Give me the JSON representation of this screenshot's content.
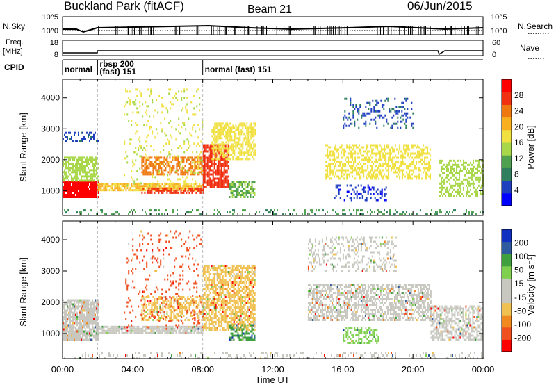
{
  "header": {
    "station": "Buckland Park (fitACF)",
    "beam": "Beam 21",
    "date": "06/Jun/2015"
  },
  "strips": {
    "nsky_label": "N.Sky",
    "nsearch_label": "N.Search",
    "freq_label_line1": "Freq.",
    "freq_label_line2": "[MHz]",
    "nave_label": "Nave",
    "cpid_label": "CPID",
    "nsky_ticks": [
      "10^5",
      "10^0"
    ],
    "nsearch_ticks": [
      "10^5",
      "10^0"
    ],
    "freq_ticks": [
      "18",
      "8"
    ],
    "nave_ticks": [
      "60",
      "0"
    ]
  },
  "cpid_segments": [
    {
      "label": "normal",
      "label2": "",
      "start_h": 0.0,
      "end_h": 2.0
    },
    {
      "label": "rbsp 200",
      "label2": "(fast) 151",
      "start_h": 2.0,
      "end_h": 8.0
    },
    {
      "label": "normal (fast)  151",
      "label2": "",
      "start_h": 8.0,
      "end_h": 24.0
    }
  ],
  "chart_data": [
    {
      "type": "heatmap",
      "panel": "power",
      "ylabel": "Slant Range [km]",
      "xlabel": "Time UT",
      "colorbar_label": "Power [dB]",
      "x_ticks": [
        "00:00",
        "04:00",
        "08:00",
        "12:00",
        "16:00",
        "20:00",
        "00:00"
      ],
      "y_ticks": [
        "1000",
        "2000",
        "3000",
        "4000"
      ],
      "xlim_hours": [
        0,
        24
      ],
      "ylim_km": [
        200,
        4600
      ],
      "colorbar_ticks": [
        "28",
        "24",
        "20",
        "16",
        "12",
        "8",
        "4"
      ],
      "colorbar_range": [
        0,
        32
      ],
      "colors": [
        "#0000ff",
        "#1f3fbf",
        "#2f7f5f",
        "#4fa04f",
        "#a8d84a",
        "#f0e040",
        "#f8b020",
        "#f07810",
        "#f03010",
        "#ff0000"
      ],
      "regions": [
        {
          "t0": 0.0,
          "t1": 2.0,
          "r0": 800,
          "r1": 1300,
          "val": 30,
          "density": 0.95
        },
        {
          "t0": 0.0,
          "t1": 2.0,
          "r0": 1300,
          "r1": 2100,
          "val": 14,
          "density": 0.7
        },
        {
          "t0": 0.0,
          "t1": 2.0,
          "r0": 2600,
          "r1": 2900,
          "val": 6,
          "density": 0.4
        },
        {
          "t0": 2.0,
          "t1": 8.0,
          "r0": 1000,
          "r1": 1250,
          "val": 20,
          "density": 0.85
        },
        {
          "t0": 4.5,
          "t1": 8.0,
          "r0": 900,
          "r1": 1100,
          "val": 27,
          "density": 0.6
        },
        {
          "t0": 4.5,
          "t1": 8.0,
          "r0": 1500,
          "r1": 2100,
          "val": 24,
          "density": 0.6
        },
        {
          "t0": 3.5,
          "t1": 8.0,
          "r0": 1200,
          "r1": 4300,
          "val": 16,
          "density": 0.12
        },
        {
          "t0": 8.0,
          "t1": 9.5,
          "r0": 1100,
          "r1": 2500,
          "val": 27,
          "density": 0.75
        },
        {
          "t0": 8.5,
          "t1": 11.0,
          "r0": 2000,
          "r1": 3200,
          "val": 18,
          "density": 0.6
        },
        {
          "t0": 9.5,
          "t1": 11.0,
          "r0": 800,
          "r1": 1300,
          "val": 12,
          "density": 0.6
        },
        {
          "t0": 15.0,
          "t1": 21.0,
          "r0": 1400,
          "r1": 2500,
          "val": 18,
          "density": 0.5
        },
        {
          "t0": 16.0,
          "t1": 20.0,
          "r0": 3000,
          "r1": 4000,
          "val": 6,
          "density": 0.2
        },
        {
          "t0": 15.5,
          "t1": 18.5,
          "r0": 700,
          "r1": 1200,
          "val": 4,
          "density": 0.25
        },
        {
          "t0": 21.5,
          "t1": 24.0,
          "r0": 800,
          "r1": 2000,
          "val": 14,
          "density": 0.5
        },
        {
          "t0": 0.0,
          "t1": 24.0,
          "r0": 200,
          "r1": 400,
          "val": 10,
          "density": 0.2
        }
      ]
    },
    {
      "type": "heatmap",
      "panel": "velocity",
      "ylabel": "Slant Range [km]",
      "xlabel": "Time UT",
      "colorbar_label": "Velocity [m s⁻¹]",
      "x_ticks": [
        "00:00",
        "04:00",
        "08:00",
        "12:00",
        "16:00",
        "20:00",
        "00:00"
      ],
      "y_ticks": [
        "1000",
        "2000",
        "3000",
        "4000"
      ],
      "xlim_hours": [
        0,
        24
      ],
      "ylim_km": [
        200,
        4600
      ],
      "colorbar_ticks": [
        "200",
        "100",
        "50",
        "15",
        "-15",
        "-50",
        "-100",
        "-200"
      ],
      "colors": [
        "#ff0000",
        "#f05020",
        "#f08a20",
        "#f0c050",
        "#c8c8c0",
        "#c8c8c0",
        "#80d050",
        "#40a040",
        "#305aa0",
        "#1030c0"
      ],
      "regions": [
        {
          "t0": 0.0,
          "t1": 2.0,
          "r0": 800,
          "r1": 2100,
          "val": 4,
          "density": 0.85
        },
        {
          "t0": 2.0,
          "t1": 8.0,
          "r0": 1000,
          "r1": 1250,
          "val": 4,
          "density": 0.85
        },
        {
          "t0": 4.5,
          "t1": 8.0,
          "r0": 1400,
          "r1": 2200,
          "val": 3,
          "density": 0.5
        },
        {
          "t0": 3.5,
          "t1": 8.0,
          "r0": 1200,
          "r1": 4300,
          "val": 1,
          "density": 0.1
        },
        {
          "t0": 8.0,
          "t1": 11.0,
          "r0": 1100,
          "r1": 3200,
          "val": 3,
          "density": 0.65
        },
        {
          "t0": 9.5,
          "t1": 11.0,
          "r0": 800,
          "r1": 1300,
          "val": 7,
          "density": 0.6
        },
        {
          "t0": 14.0,
          "t1": 21.0,
          "r0": 1400,
          "r1": 2600,
          "val": 4,
          "density": 0.6
        },
        {
          "t0": 14.0,
          "t1": 19.0,
          "r0": 3000,
          "r1": 4100,
          "val": 4,
          "density": 0.3
        },
        {
          "t0": 16.0,
          "t1": 18.0,
          "r0": 700,
          "r1": 1200,
          "val": 6,
          "density": 0.4
        },
        {
          "t0": 21.0,
          "t1": 24.0,
          "r0": 800,
          "r1": 1900,
          "val": 4,
          "density": 0.6
        },
        {
          "t0": 0.0,
          "t1": 24.0,
          "r0": 200,
          "r1": 400,
          "val": 4,
          "density": 0.2
        }
      ]
    }
  ]
}
